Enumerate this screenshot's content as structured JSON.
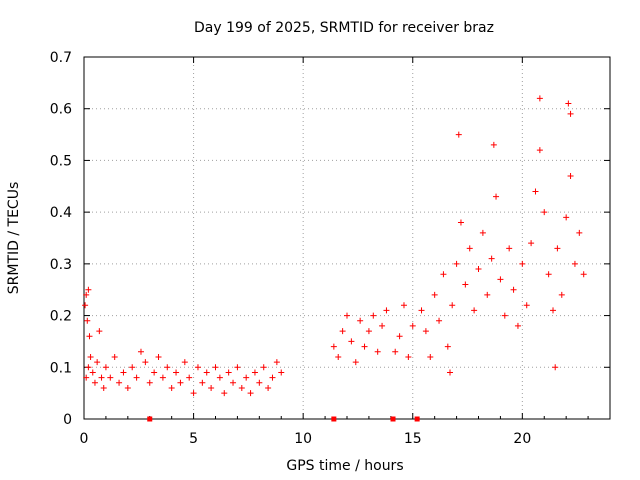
{
  "chart_data": {
    "type": "scatter",
    "title": "Day 199 of 2025, SRMTID for receiver braz",
    "xlabel": "GPS time / hours",
    "ylabel": "SRMTID / TECUs",
    "xlim": [
      0,
      24
    ],
    "ylim": [
      0,
      0.7
    ],
    "xticks": [
      0,
      5,
      10,
      15,
      20
    ],
    "xtick_labels": [
      "0",
      "5",
      "10",
      "15",
      "20"
    ],
    "yticks": [
      0,
      0.1,
      0.2,
      0.3,
      0.4,
      0.5,
      0.6,
      0.7
    ],
    "ytick_labels": [
      "0",
      "0.1",
      "0.2",
      "0.3",
      "0.4",
      "0.5",
      "0.6",
      "0.7"
    ],
    "grid": true,
    "marker": "+",
    "color": "#ff0000",
    "series": [
      {
        "name": "SRMTID",
        "points": [
          [
            0.05,
            0.22
          ],
          [
            0.1,
            0.24
          ],
          [
            0.15,
            0.19
          ],
          [
            0.2,
            0.25
          ],
          [
            0.25,
            0.16
          ],
          [
            0.3,
            0.12
          ],
          [
            0.1,
            0.08
          ],
          [
            0.2,
            0.1
          ],
          [
            0.4,
            0.09
          ],
          [
            0.5,
            0.07
          ],
          [
            0.6,
            0.11
          ],
          [
            0.7,
            0.17
          ],
          [
            0.8,
            0.08
          ],
          [
            0.9,
            0.06
          ],
          [
            1.0,
            0.1
          ],
          [
            1.2,
            0.08
          ],
          [
            1.4,
            0.12
          ],
          [
            1.6,
            0.07
          ],
          [
            1.8,
            0.09
          ],
          [
            2.0,
            0.06
          ],
          [
            2.2,
            0.1
          ],
          [
            2.4,
            0.08
          ],
          [
            2.6,
            0.13
          ],
          [
            2.8,
            0.11
          ],
          [
            3.0,
            0.07
          ],
          [
            3.2,
            0.09
          ],
          [
            3.4,
            0.12
          ],
          [
            3.6,
            0.08
          ],
          [
            3.8,
            0.1
          ],
          [
            4.0,
            0.06
          ],
          [
            4.2,
            0.09
          ],
          [
            4.4,
            0.07
          ],
          [
            4.6,
            0.11
          ],
          [
            4.8,
            0.08
          ],
          [
            5.0,
            0.05
          ],
          [
            5.2,
            0.1
          ],
          [
            5.4,
            0.07
          ],
          [
            5.6,
            0.09
          ],
          [
            5.8,
            0.06
          ],
          [
            6.0,
            0.1
          ],
          [
            6.2,
            0.08
          ],
          [
            6.4,
            0.05
          ],
          [
            6.6,
            0.09
          ],
          [
            6.8,
            0.07
          ],
          [
            7.0,
            0.1
          ],
          [
            7.2,
            0.06
          ],
          [
            7.4,
            0.08
          ],
          [
            7.6,
            0.05
          ],
          [
            7.8,
            0.09
          ],
          [
            8.0,
            0.07
          ],
          [
            8.2,
            0.1
          ],
          [
            8.4,
            0.06
          ],
          [
            8.6,
            0.08
          ],
          [
            8.8,
            0.11
          ],
          [
            9.0,
            0.09
          ],
          [
            11.4,
            0.14
          ],
          [
            11.6,
            0.12
          ],
          [
            11.8,
            0.17
          ],
          [
            12.0,
            0.2
          ],
          [
            12.2,
            0.15
          ],
          [
            12.4,
            0.11
          ],
          [
            12.6,
            0.19
          ],
          [
            12.8,
            0.14
          ],
          [
            13.0,
            0.17
          ],
          [
            13.2,
            0.2
          ],
          [
            13.4,
            0.13
          ],
          [
            13.6,
            0.18
          ],
          [
            13.8,
            0.21
          ],
          [
            14.2,
            0.13
          ],
          [
            14.4,
            0.16
          ],
          [
            14.6,
            0.22
          ],
          [
            14.8,
            0.12
          ],
          [
            15.0,
            0.18
          ],
          [
            15.4,
            0.21
          ],
          [
            15.6,
            0.17
          ],
          [
            15.8,
            0.12
          ],
          [
            16.0,
            0.24
          ],
          [
            16.2,
            0.19
          ],
          [
            16.4,
            0.28
          ],
          [
            16.6,
            0.14
          ],
          [
            16.8,
            0.22
          ],
          [
            17.0,
            0.3
          ],
          [
            17.2,
            0.38
          ],
          [
            17.4,
            0.26
          ],
          [
            17.6,
            0.33
          ],
          [
            17.8,
            0.21
          ],
          [
            18.0,
            0.29
          ],
          [
            18.2,
            0.36
          ],
          [
            18.4,
            0.24
          ],
          [
            18.6,
            0.31
          ],
          [
            18.8,
            0.43
          ],
          [
            19.0,
            0.27
          ],
          [
            19.2,
            0.2
          ],
          [
            19.4,
            0.33
          ],
          [
            19.6,
            0.25
          ],
          [
            19.8,
            0.18
          ],
          [
            20.0,
            0.3
          ],
          [
            20.2,
            0.22
          ],
          [
            20.4,
            0.34
          ],
          [
            20.6,
            0.44
          ],
          [
            20.8,
            0.52
          ],
          [
            21.0,
            0.4
          ],
          [
            21.2,
            0.28
          ],
          [
            21.4,
            0.21
          ],
          [
            21.6,
            0.33
          ],
          [
            21.8,
            0.24
          ],
          [
            22.0,
            0.39
          ],
          [
            22.2,
            0.47
          ],
          [
            22.4,
            0.3
          ],
          [
            22.6,
            0.36
          ],
          [
            22.8,
            0.28
          ],
          [
            17.1,
            0.55
          ],
          [
            18.7,
            0.53
          ],
          [
            20.8,
            0.62
          ],
          [
            22.1,
            0.61
          ],
          [
            22.2,
            0.59
          ],
          [
            16.7,
            0.09
          ],
          [
            21.5,
            0.1
          ]
        ]
      }
    ],
    "gap_markers_x": [
      3.0,
      11.4,
      14.1,
      15.2
    ]
  }
}
